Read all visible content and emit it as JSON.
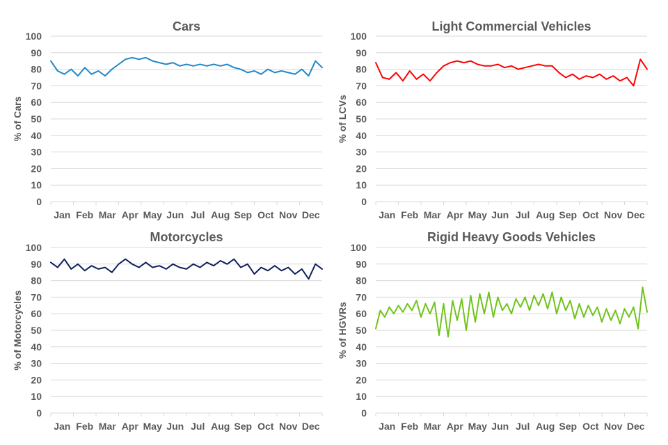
{
  "chart_data": [
    {
      "type": "line",
      "title": "Cars",
      "xlabel": "",
      "ylabel": "% of Cars",
      "ylim": [
        0,
        100
      ],
      "yticks": [
        0,
        10,
        20,
        30,
        40,
        50,
        60,
        70,
        80,
        90,
        100
      ],
      "categories": [
        "Jan",
        "Feb",
        "Mar",
        "Apr",
        "May",
        "Jun",
        "Jul",
        "Aug",
        "Sep",
        "Oct",
        "Nov",
        "Dec"
      ],
      "grid": true,
      "color": "#1f87c9",
      "series": [
        {
          "name": "Cars",
          "x": [
            0,
            0.3,
            0.6,
            0.9,
            1.2,
            1.5,
            1.8,
            2.1,
            2.4,
            2.7,
            3.0,
            3.3,
            3.6,
            3.9,
            4.2,
            4.5,
            4.8,
            5.1,
            5.4,
            5.7,
            6.0,
            6.3,
            6.6,
            6.9,
            7.2,
            7.5,
            7.8,
            8.1,
            8.4,
            8.7,
            9.0,
            9.3,
            9.6,
            9.9,
            10.2,
            10.5,
            10.8,
            11.1,
            11.4,
            11.7,
            12.0
          ],
          "values": [
            85,
            79,
            77,
            80,
            76,
            81,
            77,
            79,
            76,
            80,
            83,
            86,
            87,
            86,
            87,
            85,
            84,
            83,
            84,
            82,
            83,
            82,
            83,
            82,
            83,
            82,
            83,
            81,
            80,
            78,
            79,
            77,
            80,
            78,
            79,
            78,
            77,
            80,
            76,
            85,
            81
          ]
        }
      ]
    },
    {
      "type": "line",
      "title": "Light Commercial Vehicles",
      "xlabel": "",
      "ylabel": "% of LCVs",
      "ylim": [
        0,
        100
      ],
      "yticks": [
        0,
        10,
        20,
        30,
        40,
        50,
        60,
        70,
        80,
        90,
        100
      ],
      "categories": [
        "Jan",
        "Feb",
        "Mar",
        "Apr",
        "May",
        "Jun",
        "Jul",
        "Aug",
        "Sep",
        "Oct",
        "Nov",
        "Dec"
      ],
      "grid": true,
      "color": "#ff0000",
      "series": [
        {
          "name": "LCVs",
          "x": [
            0,
            0.3,
            0.6,
            0.9,
            1.2,
            1.5,
            1.8,
            2.1,
            2.4,
            2.7,
            3.0,
            3.3,
            3.6,
            3.9,
            4.2,
            4.5,
            4.8,
            5.1,
            5.4,
            5.7,
            6.0,
            6.3,
            6.6,
            6.9,
            7.2,
            7.5,
            7.8,
            8.1,
            8.4,
            8.7,
            9.0,
            9.3,
            9.6,
            9.9,
            10.2,
            10.5,
            10.8,
            11.1,
            11.4,
            11.7,
            12.0
          ],
          "values": [
            84,
            75,
            74,
            78,
            73,
            79,
            74,
            77,
            73,
            78,
            82,
            84,
            85,
            84,
            85,
            83,
            82,
            82,
            83,
            81,
            82,
            80,
            81,
            82,
            83,
            82,
            82,
            78,
            75,
            77,
            74,
            76,
            75,
            77,
            74,
            76,
            73,
            75,
            70,
            86,
            80
          ]
        }
      ]
    },
    {
      "type": "line",
      "title": "Motorcycles",
      "xlabel": "",
      "ylabel": "% of Motorcycles",
      "ylim": [
        0,
        100
      ],
      "yticks": [
        0,
        10,
        20,
        30,
        40,
        50,
        60,
        70,
        80,
        90,
        100
      ],
      "categories": [
        "Jan",
        "Feb",
        "Mar",
        "Apr",
        "May",
        "Jun",
        "Jul",
        "Aug",
        "Sep",
        "Oct",
        "Nov",
        "Dec"
      ],
      "grid": true,
      "color": "#0d1f5c",
      "series": [
        {
          "name": "Motorcycles",
          "x": [
            0,
            0.3,
            0.6,
            0.9,
            1.2,
            1.5,
            1.8,
            2.1,
            2.4,
            2.7,
            3.0,
            3.3,
            3.6,
            3.9,
            4.2,
            4.5,
            4.8,
            5.1,
            5.4,
            5.7,
            6.0,
            6.3,
            6.6,
            6.9,
            7.2,
            7.5,
            7.8,
            8.1,
            8.4,
            8.7,
            9.0,
            9.3,
            9.6,
            9.9,
            10.2,
            10.5,
            10.8,
            11.1,
            11.4,
            11.7,
            12.0
          ],
          "values": [
            91,
            88,
            93,
            87,
            90,
            86,
            89,
            87,
            88,
            85,
            90,
            93,
            90,
            88,
            91,
            88,
            89,
            87,
            90,
            88,
            87,
            90,
            88,
            91,
            89,
            92,
            90,
            93,
            88,
            90,
            84,
            88,
            86,
            89,
            86,
            88,
            84,
            87,
            81,
            90,
            87
          ]
        }
      ]
    },
    {
      "type": "line",
      "title": "Rigid Heavy Goods Vehicles",
      "xlabel": "",
      "ylabel": "% of HGVRs",
      "ylim": [
        0,
        100
      ],
      "yticks": [
        0,
        10,
        20,
        30,
        40,
        50,
        60,
        70,
        80,
        90,
        100
      ],
      "categories": [
        "Jan",
        "Feb",
        "Mar",
        "Apr",
        "May",
        "Jun",
        "Jul",
        "Aug",
        "Sep",
        "Oct",
        "Nov",
        "Dec"
      ],
      "grid": true,
      "color": "#70c31b",
      "series": [
        {
          "name": "HGVRs",
          "x": [
            0,
            0.2,
            0.4,
            0.6,
            0.8,
            1.0,
            1.2,
            1.4,
            1.6,
            1.8,
            2.0,
            2.2,
            2.4,
            2.6,
            2.8,
            3.0,
            3.2,
            3.4,
            3.6,
            3.8,
            4.0,
            4.2,
            4.4,
            4.6,
            4.8,
            5.0,
            5.2,
            5.4,
            5.6,
            5.8,
            6.0,
            6.2,
            6.4,
            6.6,
            6.8,
            7.0,
            7.2,
            7.4,
            7.6,
            7.8,
            8.0,
            8.2,
            8.4,
            8.6,
            8.8,
            9.0,
            9.2,
            9.4,
            9.6,
            9.8,
            10.0,
            10.2,
            10.4,
            10.6,
            10.8,
            11.0,
            11.2,
            11.4,
            11.6,
            11.8,
            12.0
          ],
          "values": [
            51,
            62,
            58,
            64,
            60,
            65,
            61,
            66,
            62,
            68,
            58,
            66,
            60,
            67,
            47,
            66,
            46,
            68,
            56,
            69,
            50,
            71,
            55,
            72,
            60,
            73,
            58,
            70,
            62,
            66,
            60,
            69,
            64,
            70,
            62,
            71,
            65,
            72,
            63,
            73,
            60,
            70,
            62,
            68,
            57,
            66,
            58,
            65,
            59,
            64,
            55,
            63,
            56,
            62,
            54,
            63,
            58,
            64,
            51,
            76,
            61
          ]
        }
      ]
    }
  ]
}
